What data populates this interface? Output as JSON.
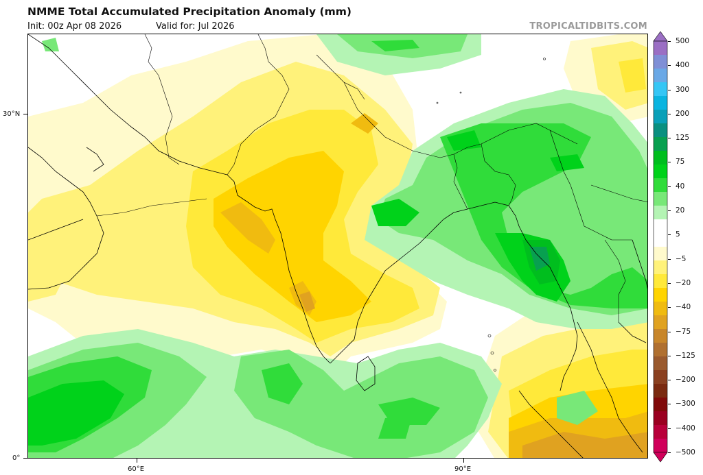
{
  "header": {
    "title": "NMME Total Accumulated Precipitation Anomaly (mm)",
    "init": "Init: 00z Apr 08 2026",
    "valid": "Valid for: Jul 2026",
    "source": "TROPICALTIDBITS.COM"
  },
  "map": {
    "variable": "precipitation anomaly",
    "units": "mm",
    "lat_ticks": [
      "30°N",
      "0°"
    ],
    "lon_ticks": [
      "60°E",
      "90°E"
    ]
  },
  "colorbar": {
    "labels": [
      "500",
      "400",
      "300",
      "200",
      "150",
      "125",
      "100",
      "75",
      "60",
      "40",
      "30",
      "20",
      "10",
      "5",
      "0",
      "−5",
      "−10",
      "−20",
      "−30",
      "−40",
      "−60",
      "−75",
      "−100",
      "−125",
      "−150",
      "−200",
      "−250",
      "−300",
      "−400",
      "−500"
    ],
    "shown_labels": [
      "500",
      "400",
      "300",
      "200",
      "125",
      "75",
      "40",
      "20",
      "5",
      "−5",
      "−20",
      "−40",
      "−75",
      "−125",
      "−200",
      "−300",
      "−400",
      "−500"
    ],
    "colors": [
      "#9b6fc4",
      "#7f8fd6",
      "#6aa8e6",
      "#35c6f5",
      "#0ab4e0",
      "#0aa0b8",
      "#0a9080",
      "#08a050",
      "#00be1e",
      "#00d21a",
      "#30dc3a",
      "#78e878",
      "#b4f4b4",
      "#ffffff",
      "#ffffff",
      "#fffacc",
      "#fff27a",
      "#ffe93a",
      "#ffd400",
      "#f0bb10",
      "#e0a220",
      "#c8862a",
      "#b07030",
      "#9a5a2e",
      "#8a4020",
      "#7a2a10",
      "#800a0a",
      "#9a0020",
      "#b8003a",
      "#d0005a"
    ]
  }
}
